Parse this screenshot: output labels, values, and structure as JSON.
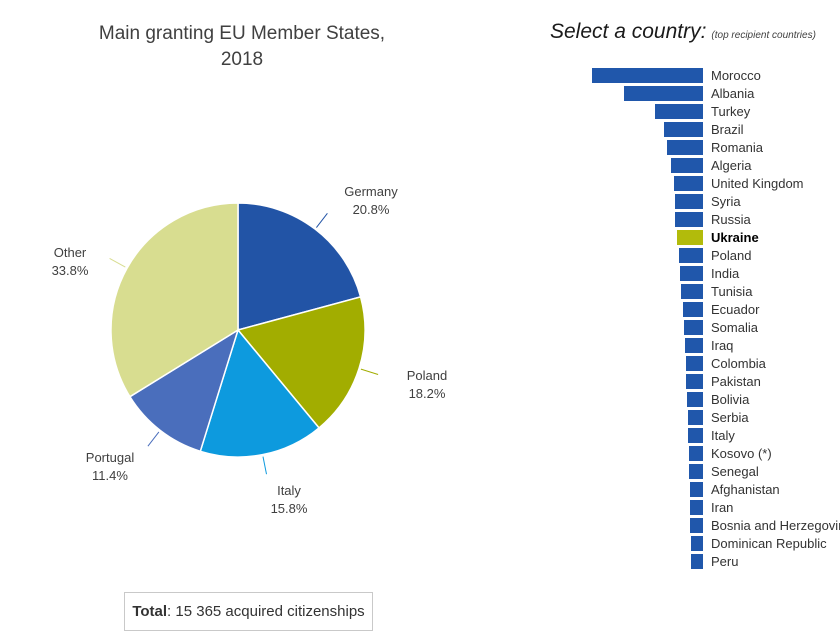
{
  "pie_section": {
    "title_line1": "Main granting EU Member States,",
    "title_line2": "2018",
    "total_bold": "Total",
    "total_text": ": 15 365 acquired citizenships"
  },
  "country_selector": {
    "title": "Select a country:",
    "subtitle": "(top recipient countries)",
    "highlight_country": "Ukraine",
    "bar_color": "#2057ab",
    "highlight_color": "#b2bb0b",
    "label_color": "#333333"
  },
  "chart_data": [
    {
      "type": "pie",
      "title": "Main granting EU Member States, 2018",
      "labels": [
        "Germany",
        "Poland",
        "Italy",
        "Portugal",
        "Other"
      ],
      "values": [
        20.8,
        18.2,
        15.8,
        11.4,
        33.8
      ],
      "colors": [
        "#2254a6",
        "#a2ad00",
        "#0d9ade",
        "#4a6ebc",
        "#d8dd90"
      ],
      "value_suffix": "%",
      "note": "Total: 15 365 acquired citizenships",
      "total_value": "15 365"
    },
    {
      "type": "bar",
      "orientation": "horizontal",
      "title": "Select a country: (top recipient countries)",
      "categories": [
        "Morocco",
        "Albania",
        "Turkey",
        "Brazil",
        "Romania",
        "Algeria",
        "United Kingdom",
        "Syria",
        "Russia",
        "Ukraine",
        "Poland",
        "India",
        "Tunisia",
        "Ecuador",
        "Somalia",
        "Iraq",
        "Colombia",
        "Pakistan",
        "Bolivia",
        "Serbia",
        "Italy",
        "Kosovo (*)",
        "Senegal",
        "Afghanistan",
        "Iran",
        "Bosnia and Herzegovina",
        "Dominican Republic",
        "Peru"
      ],
      "values": [
        111,
        79,
        48,
        39,
        36,
        32,
        29,
        28,
        28,
        26,
        24,
        23,
        22,
        20,
        19,
        18,
        17,
        17,
        16,
        15,
        15,
        14,
        14,
        13,
        13,
        13,
        12,
        12
      ],
      "highlight": "Ukraine"
    }
  ]
}
